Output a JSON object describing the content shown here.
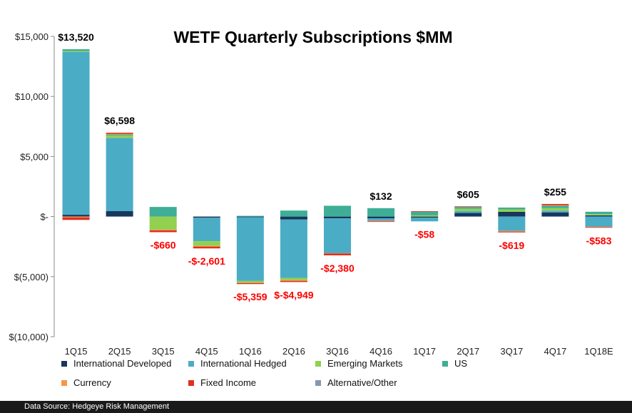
{
  "chart_data": {
    "type": "bar",
    "stacked": true,
    "title": "WETF Quarterly Subscriptions $MM",
    "xlabel": "",
    "ylabel": "",
    "ylim": [
      -10000,
      15000
    ],
    "y_ticks": [
      15000,
      10000,
      5000,
      0,
      -5000,
      -10000
    ],
    "y_tick_labels": [
      "$15,000",
      "$10,000",
      "$5,000",
      "$-",
      "$(5,000)",
      "$(10,000)"
    ],
    "categories": [
      "1Q15",
      "2Q15",
      "3Q15",
      "4Q15",
      "1Q16",
      "2Q16",
      "3Q16",
      "4Q16",
      "1Q17",
      "2Q17",
      "3Q17",
      "4Q17",
      "1Q18E"
    ],
    "series": [
      {
        "name": "International Developed",
        "color": "#17375e",
        "values": [
          150,
          450,
          0,
          -100,
          -60,
          -250,
          -150,
          -150,
          -100,
          300,
          400,
          350,
          100
        ]
      },
      {
        "name": "International Hedged",
        "color": "#4bacc6",
        "values": [
          13550,
          6100,
          0,
          -1950,
          -5300,
          -4850,
          -2900,
          -200,
          -300,
          150,
          -1200,
          150,
          -850
        ]
      },
      {
        "name": "Emerging Markets",
        "color": "#92d050",
        "values": [
          80,
          200,
          -1100,
          -400,
          -150,
          -200,
          0,
          0,
          100,
          200,
          200,
          200,
          100
        ]
      },
      {
        "name": "US",
        "color": "#3fae96",
        "values": [
          150,
          80,
          800,
          0,
          60,
          500,
          900,
          700,
          300,
          150,
          150,
          200,
          200
        ]
      },
      {
        "name": "Currency",
        "color": "#f79646",
        "values": [
          -80,
          50,
          -50,
          -50,
          -30,
          -50,
          -30,
          -50,
          0,
          0,
          -50,
          50,
          -30
        ]
      },
      {
        "name": "Fixed Income",
        "color": "#e0301e",
        "values": [
          -200,
          100,
          -150,
          -150,
          -80,
          -100,
          -150,
          -30,
          50,
          50,
          -70,
          100,
          -50
        ]
      },
      {
        "name": "Alternative/Other",
        "color": "#8497b0",
        "values": [
          0,
          0,
          0,
          0,
          0,
          0,
          0,
          0,
          0,
          0,
          0,
          0,
          0
        ]
      }
    ],
    "totals": [
      {
        "text": "$13,520",
        "value": 13520,
        "color": "#000000"
      },
      {
        "text": "$6,598",
        "value": 6598,
        "color": "#000000"
      },
      {
        "text": "-$660",
        "value": -660,
        "color": "#ff0000"
      },
      {
        "text": "-$-2,601",
        "value": -2601,
        "color": "#ff0000"
      },
      {
        "text": "-$5,359",
        "value": -5359,
        "color": "#ff0000"
      },
      {
        "text": "$-$4,949",
        "value": -4949,
        "color": "#ff0000"
      },
      {
        "text": "-$2,380",
        "value": -2380,
        "color": "#ff0000"
      },
      {
        "text": "$132",
        "value": 132,
        "color": "#000000"
      },
      {
        "text": "-$58",
        "value": -58,
        "color": "#ff0000"
      },
      {
        "text": "$605",
        "value": 605,
        "color": "#000000"
      },
      {
        "text": "-$619",
        "value": -619,
        "color": "#ff0000"
      },
      {
        "text": "$255",
        "value": 255,
        "color": "#000000"
      },
      {
        "text": "-$583",
        "value": -583,
        "color": "#ff0000"
      }
    ],
    "grid": false,
    "legend_position": "bottom"
  },
  "footer": {
    "source": "Data Source: Hedgeye Risk Management"
  }
}
